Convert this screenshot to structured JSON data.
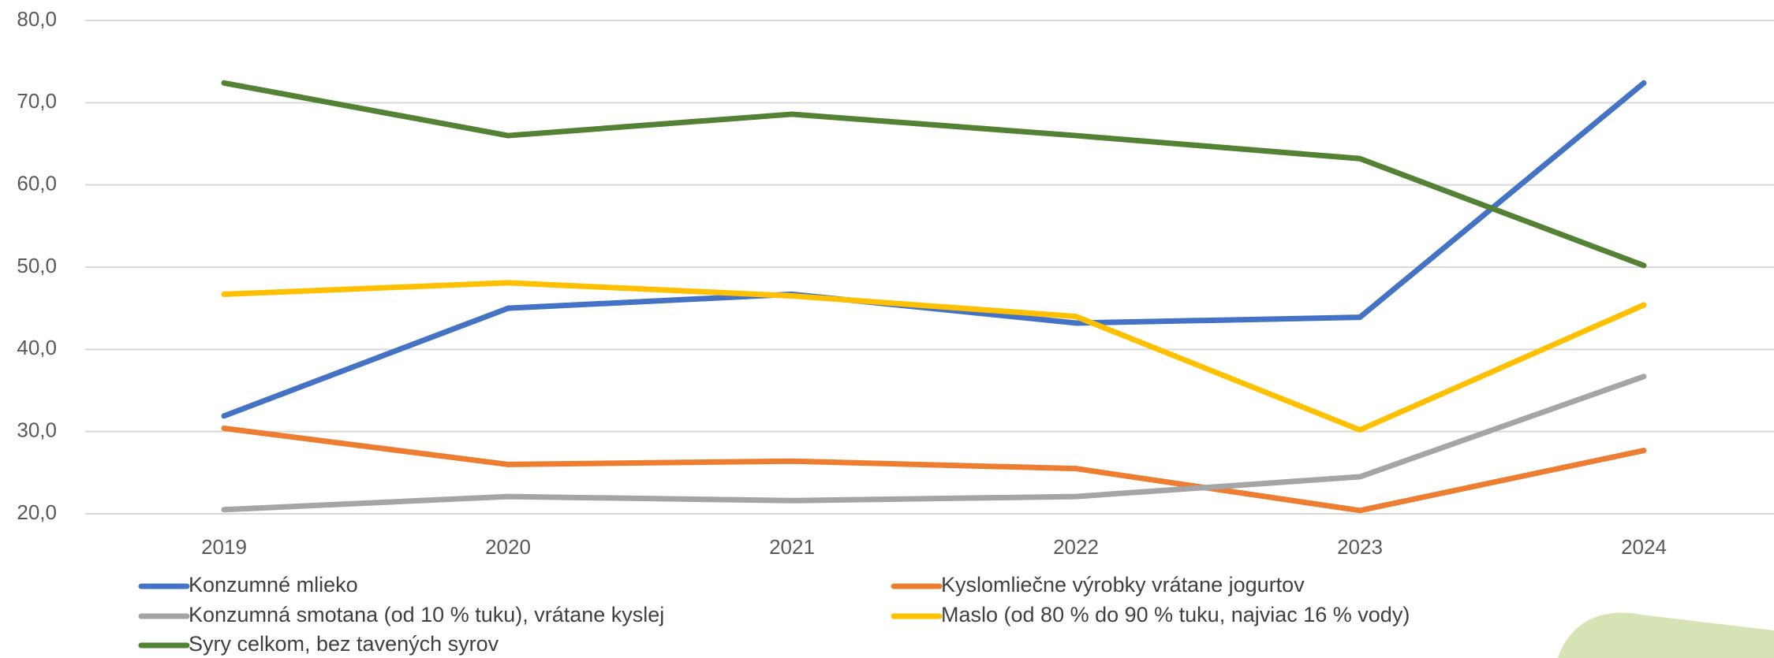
{
  "chart_data": {
    "type": "line",
    "categories": [
      "2019",
      "2020",
      "2021",
      "2022",
      "2023",
      "2024"
    ],
    "series": [
      {
        "name": "Konzumné mlieko",
        "color": "#4472c4",
        "values": [
          31.9,
          45.0,
          46.7,
          43.2,
          43.9,
          72.4
        ]
      },
      {
        "name": "Kyslomliečne výrobky vrátane jogurtov",
        "color": "#ed7d31",
        "values": [
          30.4,
          26.0,
          26.4,
          25.5,
          20.4,
          27.7
        ]
      },
      {
        "name": "Konzumná smotana (od 10 % tuku), vrátane kyslej",
        "color": "#a5a5a5",
        "values": [
          20.5,
          22.1,
          21.6,
          22.1,
          24.5,
          36.7
        ]
      },
      {
        "name": "Maslo (od 80 % do 90 % tuku, najviac 16 % vody)",
        "color": "#ffc000",
        "values": [
          46.7,
          48.1,
          46.5,
          44.0,
          30.2,
          45.4
        ]
      },
      {
        "name": "Syry celkom, bez tavených syrov",
        "color": "#548235",
        "values": [
          72.4,
          66.0,
          68.6,
          66.0,
          63.2,
          50.2
        ]
      }
    ],
    "ylim": [
      20,
      80
    ],
    "yticks": [
      {
        "value": 20,
        "label": "20,0"
      },
      {
        "value": 30,
        "label": "30,0"
      },
      {
        "value": 40,
        "label": "40,0"
      },
      {
        "value": 50,
        "label": "50,0"
      },
      {
        "value": 60,
        "label": "60,0"
      },
      {
        "value": 70,
        "label": "70,0"
      },
      {
        "value": 80,
        "label": "80,0"
      }
    ],
    "grid": true
  }
}
